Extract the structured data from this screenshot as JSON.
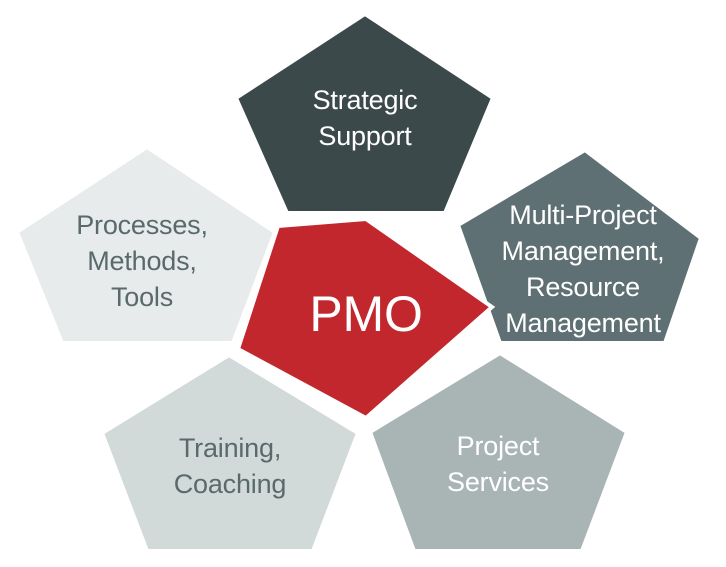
{
  "center": {
    "label": "PMO",
    "fill": "#c1272d",
    "text_color": "#ffffff"
  },
  "segments": [
    {
      "id": "strategic",
      "lines": [
        "Strategic",
        "Support"
      ],
      "fill": "#3c494b",
      "text_color": "#ffffff"
    },
    {
      "id": "multiproject",
      "lines": [
        "Multi-Project",
        "Management,",
        "Resource",
        "Management"
      ],
      "fill": "#5e7073",
      "text_color": "#ffffff"
    },
    {
      "id": "services",
      "lines": [
        "Project",
        "Services"
      ],
      "fill": "#a9b5b5",
      "text_color": "#ffffff"
    },
    {
      "id": "training",
      "lines": [
        "Training,",
        "Coaching"
      ],
      "fill": "#d2d9d9",
      "text_color": "#5a6a6c"
    },
    {
      "id": "processes",
      "lines": [
        "Processes,",
        "Methods,",
        "Tools"
      ],
      "fill": "#e7ebeb",
      "text_color": "#5a6a6c"
    }
  ]
}
